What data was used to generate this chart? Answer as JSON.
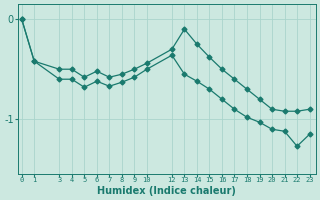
{
  "xlabel": "Humidex (Indice chaleur)",
  "background_color": "#cce8e0",
  "line_color": "#1a7a6e",
  "grid_color": "#aad4cc",
  "xticks": [
    0,
    1,
    3,
    4,
    5,
    6,
    7,
    8,
    9,
    10,
    12,
    13,
    14,
    15,
    16,
    17,
    18,
    19,
    20,
    21,
    22,
    23
  ],
  "yticks": [
    0,
    -1
  ],
  "ylim": [
    -1.55,
    0.15
  ],
  "xlim": [
    -0.3,
    23.5
  ],
  "line1_x": [
    0,
    1,
    3,
    4,
    5,
    6,
    7,
    8,
    9,
    10,
    12,
    13,
    14,
    15,
    16,
    17,
    18,
    19,
    20,
    21,
    22,
    23
  ],
  "line1_y": [
    0.0,
    -0.42,
    -0.5,
    -0.5,
    -0.58,
    -0.52,
    -0.58,
    -0.55,
    -0.5,
    -0.44,
    -0.3,
    -0.1,
    -0.25,
    -0.38,
    -0.5,
    -0.6,
    -0.7,
    -0.8,
    -0.9,
    -0.92,
    -0.92,
    -0.9
  ],
  "line2_x": [
    0,
    1,
    3,
    4,
    5,
    6,
    7,
    8,
    9,
    10,
    12,
    13,
    14,
    15,
    16,
    17,
    18,
    19,
    20,
    21,
    22,
    23
  ],
  "line2_y": [
    0.0,
    -0.42,
    -0.6,
    -0.6,
    -0.68,
    -0.62,
    -0.67,
    -0.63,
    -0.58,
    -0.5,
    -0.36,
    -0.55,
    -0.62,
    -0.7,
    -0.8,
    -0.9,
    -0.98,
    -1.03,
    -1.1,
    -1.12,
    -1.27,
    -1.15
  ]
}
